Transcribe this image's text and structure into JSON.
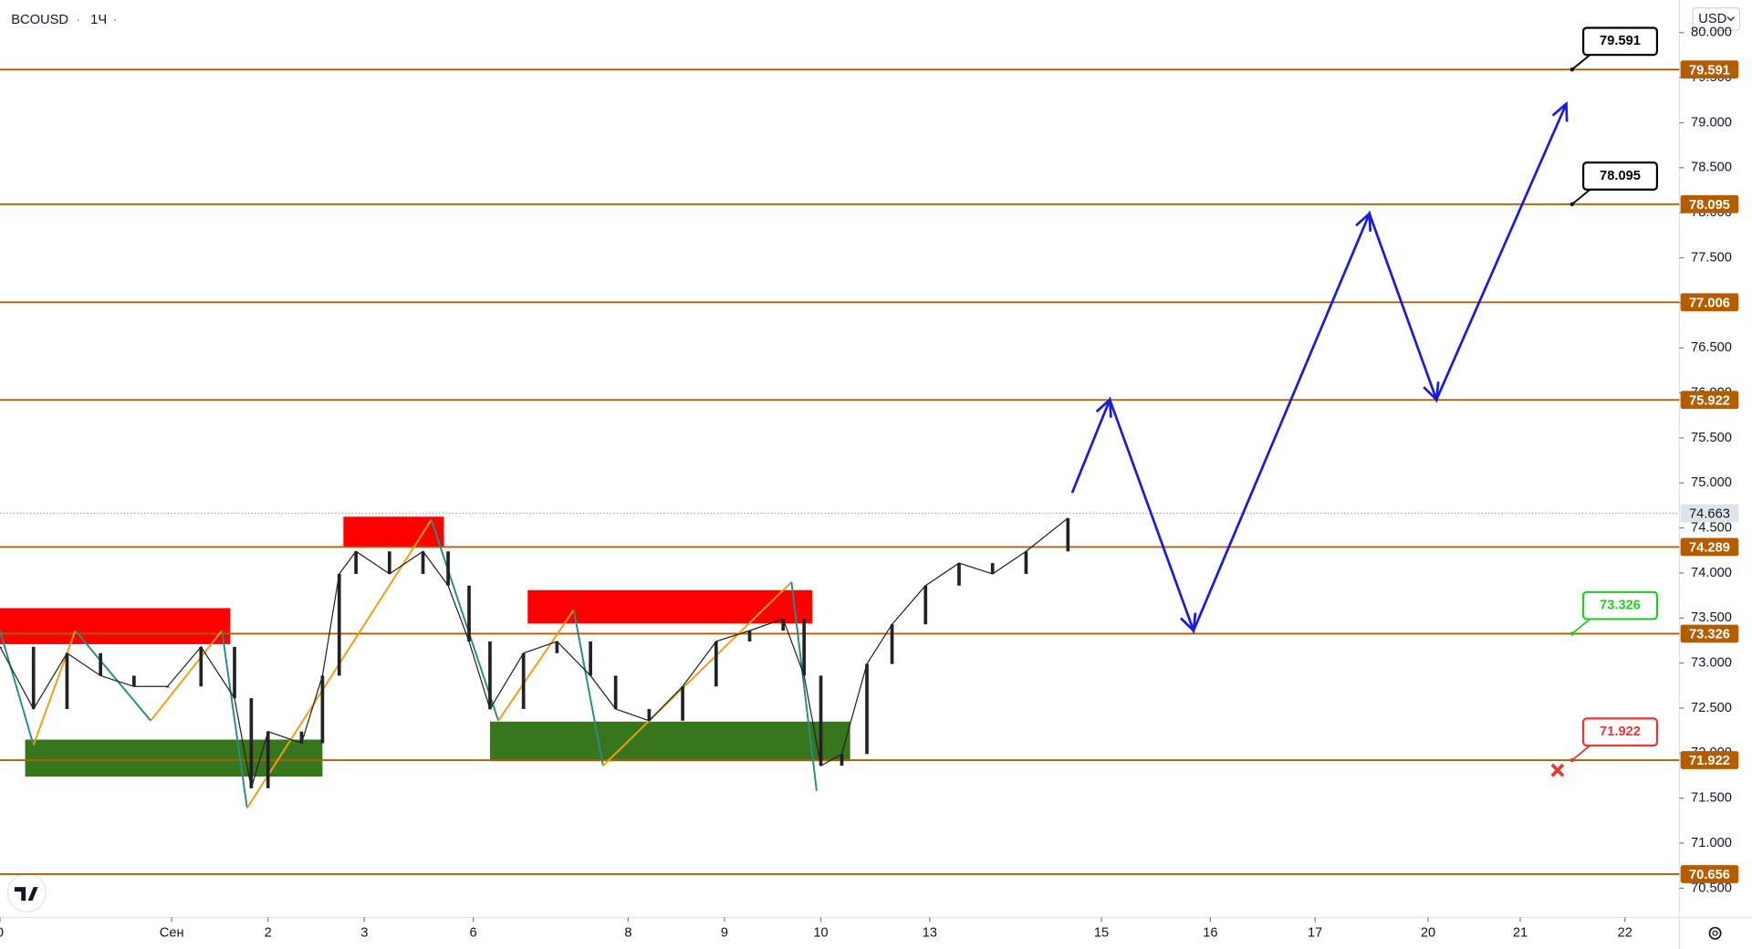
{
  "chart_data": {
    "type": "candlestick",
    "title": "BCOUSD",
    "interval": "1Ч",
    "currency": "USD",
    "xlim": [
      0,
      401
    ],
    "xticks": [
      0,
      {
        "value": 41,
        "label": "Сен"
      },
      {
        "value": 64,
        "label": "2"
      },
      {
        "value": 87,
        "label": "3"
      },
      {
        "value": 113,
        "label": "6"
      },
      {
        "value": 150,
        "label": "8"
      },
      {
        "value": 173,
        "label": "9"
      },
      {
        "value": 196,
        "label": "10"
      },
      {
        "value": 222,
        "label": "13"
      },
      {
        "value": 263,
        "label": "15"
      },
      {
        "value": 289,
        "label": "16"
      },
      {
        "value": 314,
        "label": "17"
      },
      {
        "value": 341,
        "label": "20"
      },
      {
        "value": 363,
        "label": "21"
      },
      {
        "value": 388,
        "label": "22"
      }
    ],
    "ylim": [
      70.175,
      80.3625
    ],
    "yticks": [
      {
        "value": 70.5,
        "label": "70.500"
      },
      {
        "value": 71,
        "label": "71.000"
      },
      {
        "value": 71.5,
        "label": "71.500"
      },
      {
        "value": 72,
        "label": "72.000"
      },
      {
        "value": 72.5,
        "label": "72.500"
      },
      {
        "value": 73,
        "label": "73.000"
      },
      {
        "value": 73.5,
        "label": "73.500"
      },
      {
        "value": 74,
        "label": "74.000"
      },
      {
        "value": 74.5,
        "label": "74.500"
      },
      {
        "value": 75,
        "label": "75.000"
      },
      {
        "value": 75.5,
        "label": "75.500"
      },
      {
        "value": 76,
        "label": "76.000"
      },
      {
        "value": 76.5,
        "label": "76.500"
      },
      {
        "value": 77,
        "label": "77.000"
      },
      {
        "value": 77.5,
        "label": "77.500"
      },
      {
        "value": 78,
        "label": "78.000"
      },
      {
        "value": 78.5,
        "label": "78.500"
      },
      {
        "value": 79,
        "label": "79.000"
      },
      {
        "value": 79.5,
        "label": "79.500"
      },
      {
        "value": 80,
        "label": "80.000"
      }
    ],
    "price": {
      "color": "#222222",
      "x": [
        0,
        8,
        16,
        24,
        32,
        40,
        48,
        56,
        60,
        64,
        72,
        77,
        81,
        85,
        93,
        101,
        107,
        112,
        117,
        125,
        133,
        141,
        147,
        155,
        163,
        171,
        179,
        187,
        192,
        196,
        201,
        207,
        213,
        221,
        229,
        237,
        245,
        255
      ],
      "values": [
        73.18,
        72.49,
        73.11,
        72.86,
        72.74,
        72.74,
        73.18,
        72.61,
        71.61,
        72.24,
        72.11,
        72.86,
        73.99,
        74.24,
        73.99,
        74.24,
        73.86,
        73.24,
        72.49,
        73.11,
        73.24,
        72.86,
        72.49,
        72.36,
        72.74,
        73.24,
        73.36,
        73.49,
        72.86,
        71.86,
        71.99,
        72.99,
        73.43,
        73.86,
        74.11,
        73.99,
        74.24,
        74.61
      ]
    },
    "last_price": 74.663,
    "level_color": "#b35c00",
    "levels": [
      79.591,
      78.095,
      77.006,
      75.922,
      74.289,
      73.326,
      71.922,
      70.656
    ],
    "zones": [
      {
        "color": "#ff0000",
        "x": [
          0,
          55
        ],
        "low": 73.21,
        "high": 73.61
      },
      {
        "color": "#ff0000",
        "x": [
          82,
          106
        ],
        "low": 74.29,
        "high": 74.625
      },
      {
        "color": "#ff0000",
        "x": [
          126,
          194
        ],
        "low": 73.44,
        "high": 73.81
      },
      {
        "color": "#38761d",
        "x": [
          6,
          77
        ],
        "low": 71.74,
        "high": 72.15
      },
      {
        "color": "#38761d",
        "x": [
          117,
          203
        ],
        "low": 71.91,
        "high": 72.35
      }
    ],
    "zigzag": {
      "up_color": "#f39c12",
      "down_color": "#2a8c84",
      "x": [
        0,
        8,
        18,
        36,
        53,
        59,
        103,
        119,
        137,
        144,
        189,
        195
      ],
      "values": [
        73.36,
        72.09,
        73.36,
        72.36,
        73.36,
        71.39,
        74.59,
        72.36,
        73.59,
        71.86,
        73.9,
        71.58
      ]
    },
    "forecast": {
      "color": "#1a1adb",
      "x": [
        256,
        265,
        285,
        327,
        343,
        374
      ],
      "values": [
        74.89,
        75.925,
        73.36,
        77.99,
        75.925,
        79.21
      ]
    },
    "targets": [
      {
        "value": 79.591,
        "color": "#000000"
      },
      {
        "value": 78.095,
        "color": "#000000"
      },
      {
        "value": 73.326,
        "color": "#22cc22"
      },
      {
        "value": 71.922,
        "color": "#e53935"
      }
    ]
  }
}
